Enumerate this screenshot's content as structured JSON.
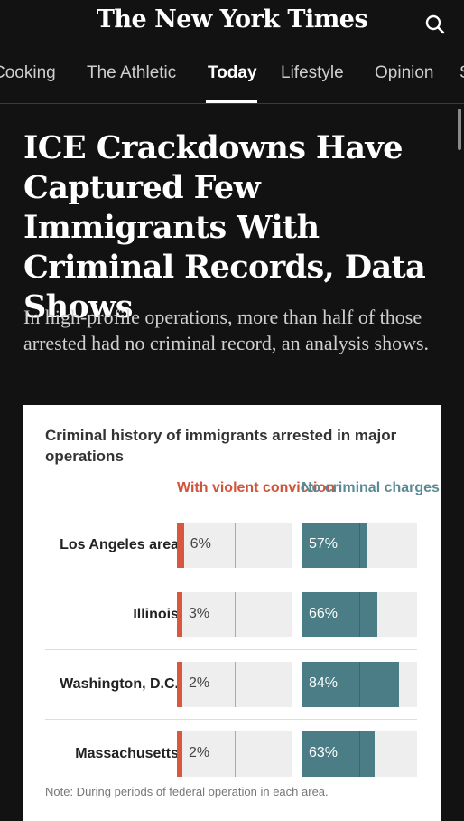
{
  "masthead": {
    "logo_text": "The New York Times",
    "search_icon": "search-icon"
  },
  "nav": {
    "tabs": [
      {
        "label": "Cooking",
        "active": false
      },
      {
        "label": "The Athletic",
        "active": false
      },
      {
        "label": "Today",
        "active": true
      },
      {
        "label": "Lifestyle",
        "active": false
      },
      {
        "label": "Opinion",
        "active": false
      },
      {
        "label": "S",
        "active": false
      }
    ]
  },
  "article": {
    "headline": "ICE Crackdowns Have Captured Few Immigrants With Criminal Records, Data Shows",
    "summary": "In high-profile operations, more than half of those arrested had no criminal record, an analysis shows."
  },
  "chart_data": {
    "type": "bar",
    "title": "Criminal history of immigrants arrested in major operations",
    "series": [
      {
        "name": "With violent conviction",
        "color": "#d8583f",
        "values": [
          6,
          3,
          2,
          2
        ]
      },
      {
        "name": "No criminal charges",
        "color": "#4a7d86",
        "values": [
          57,
          66,
          84,
          63
        ]
      }
    ],
    "categories": [
      "Los Angeles area",
      "Illinois",
      "Washington, D.C.",
      "Massachusetts"
    ],
    "value_labels": {
      "violent": [
        "6%",
        "3%",
        "2%",
        "2%"
      ],
      "none": [
        "57%",
        "66%",
        "84%",
        "63%"
      ]
    },
    "ylim": [
      0,
      100
    ],
    "note": "Note: During periods of federal operation in each area."
  },
  "colors": {
    "background": "#121212",
    "violent": "#d8583f",
    "no_criminal": "#4a7d86"
  }
}
